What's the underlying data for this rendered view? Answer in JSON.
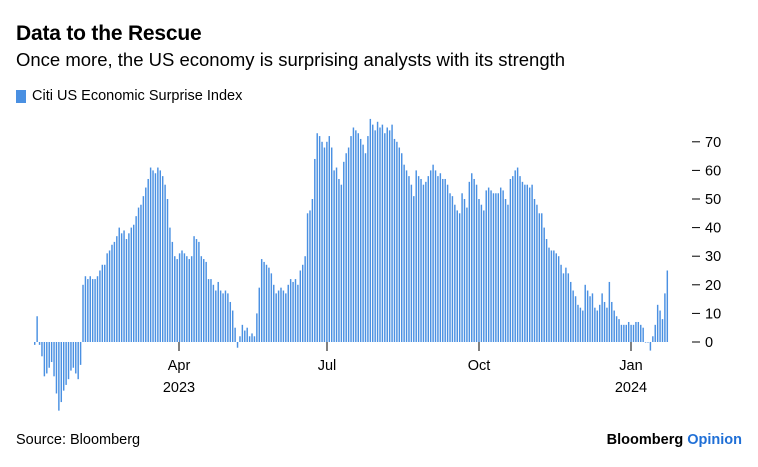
{
  "chart_data": {
    "type": "bar",
    "title": "Data to the Rescue",
    "subtitle": "Once more, the US economy is surprising analysts with its strength",
    "legend": [
      "Citi US Economic Surprise Index"
    ],
    "series": [
      {
        "name": "Citi US Economic Surprise Index",
        "color": "#4a90e2",
        "period": "2023-01-02 to 2024-02-12, daily (business days)",
        "values": [
          -1,
          9,
          -1,
          -5,
          -12,
          -11,
          -9,
          -7,
          -12,
          -18,
          -24,
          -21,
          -17,
          -15,
          -13,
          -10,
          -9,
          -11,
          -13,
          -8,
          20,
          23,
          22,
          23,
          22,
          22,
          23,
          25,
          27,
          27,
          31,
          32,
          34,
          35,
          37,
          40,
          38,
          39,
          36,
          38,
          40,
          41,
          44,
          47,
          48,
          51,
          54,
          57,
          61,
          60,
          59,
          61,
          60,
          58,
          55,
          50,
          40,
          35,
          30,
          29,
          31,
          32,
          31,
          30,
          29,
          30,
          37,
          36,
          35,
          30,
          29,
          28,
          22,
          22,
          20,
          18,
          21,
          18,
          17,
          18,
          17,
          14,
          11,
          5,
          -2,
          2,
          6,
          4,
          5,
          2,
          3,
          2,
          10,
          19,
          29,
          28,
          27,
          26,
          24,
          20,
          17,
          18,
          19,
          18,
          17,
          20,
          22,
          21,
          22,
          20,
          25,
          27,
          30,
          45,
          46,
          50,
          64,
          73,
          72,
          70,
          68,
          70,
          72,
          68,
          60,
          61,
          57,
          55,
          63,
          66,
          68,
          72,
          75,
          74,
          73,
          71,
          69,
          66,
          72,
          78,
          76,
          74,
          77,
          75,
          76,
          73,
          75,
          74,
          76,
          71,
          70,
          68,
          66,
          62,
          60,
          58,
          55,
          51,
          60,
          58,
          57,
          55,
          56,
          58,
          60,
          62,
          60,
          58,
          59,
          57,
          57,
          55,
          52,
          51,
          48,
          46,
          45,
          52,
          50,
          47,
          56,
          59,
          57,
          55,
          50,
          48,
          46,
          53,
          54,
          53,
          52,
          52,
          52,
          54,
          53,
          50,
          48,
          57,
          58,
          60,
          61,
          58,
          56,
          55,
          55,
          54,
          55,
          50,
          48,
          45,
          45,
          40,
          36,
          33,
          32,
          32,
          31,
          30,
          27,
          24,
          26,
          24,
          21,
          18,
          16,
          13,
          12,
          11,
          20,
          18,
          16,
          17,
          12,
          11,
          13,
          17,
          14,
          12,
          21,
          14,
          11,
          9,
          8,
          6,
          6,
          6,
          7,
          6,
          6,
          7,
          7,
          6,
          5,
          0,
          0,
          -3,
          2,
          6,
          13,
          11,
          8,
          17,
          25
        ]
      }
    ],
    "x_tick_labels": [
      "Apr",
      "Jul",
      "Oct",
      "Jan"
    ],
    "x_tick_years": [
      "2023",
      "2024"
    ],
    "y_tick_labels": [
      "70",
      "60",
      "50",
      "40",
      "30",
      "20",
      "10",
      "0"
    ],
    "ylim": [
      -25,
      80
    ],
    "ylabel": "",
    "xlabel": "",
    "grid": false,
    "y_axis_side": "right"
  },
  "footer": {
    "source": "Source: Bloomberg",
    "brand_name": "Bloomberg",
    "brand_section": "Opinion"
  }
}
